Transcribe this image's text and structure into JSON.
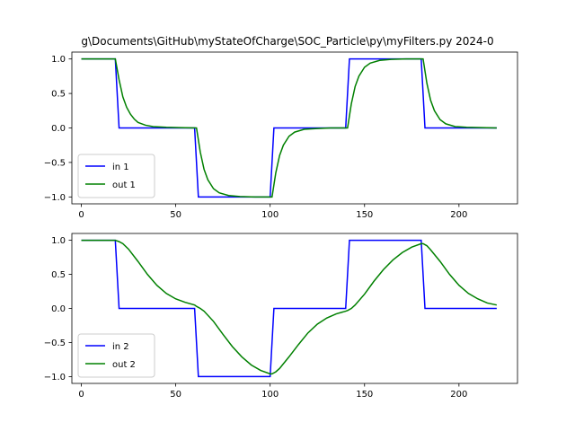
{
  "chart_data": {
    "title": "g\\Documents\\GitHub\\myStateOfCharge\\SOC_Particle\\py\\myFilters.py    2024-0",
    "type": "line",
    "xlim": [
      -5,
      231
    ],
    "ylim": [
      -1.1,
      1.1
    ],
    "xticks": [
      0,
      50,
      100,
      150,
      200
    ],
    "yticks": [
      -1.0,
      -0.5,
      0.0,
      0.5,
      1.0
    ],
    "subplots": [
      {
        "legend_position": "lower-left",
        "series": [
          {
            "name": "in 1",
            "color": "#0000ff",
            "x": [
              0,
              18,
              20,
              60,
              62,
              100,
              102,
              140,
              142,
              180,
              182,
              220
            ],
            "y": [
              1,
              1,
              0,
              0,
              -1,
              -1,
              0,
              0,
              1,
              1,
              0,
              0
            ]
          },
          {
            "name": "out 1",
            "color": "#008000",
            "x": [
              0,
              18,
              20,
              22,
              24,
              26,
              28,
              30,
              34,
              38,
              45,
              52,
              61,
              63,
              65,
              67,
              70,
              73,
              78,
              84,
              92,
              101,
              103,
              105,
              107,
              110,
              113,
              118,
              124,
              132,
              141,
              143,
              145,
              147,
              150,
              153,
              158,
              164,
              172,
              181,
              183,
              185,
              187,
              190,
              193,
              198,
              204,
              212,
              220
            ],
            "y": [
              1,
              1,
              0.7,
              0.45,
              0.3,
              0.2,
              0.13,
              0.08,
              0.04,
              0.02,
              0.01,
              0.005,
              0.0,
              -0.35,
              -0.6,
              -0.75,
              -0.88,
              -0.94,
              -0.98,
              -0.995,
              -1.0,
              -1.0,
              -0.65,
              -0.4,
              -0.25,
              -0.12,
              -0.06,
              -0.02,
              -0.01,
              0.0,
              0.0,
              0.35,
              0.6,
              0.75,
              0.88,
              0.94,
              0.98,
              0.995,
              1.0,
              1.0,
              0.65,
              0.4,
              0.25,
              0.12,
              0.06,
              0.02,
              0.01,
              0.005,
              0.0
            ]
          }
        ]
      },
      {
        "legend_position": "lower-left",
        "series": [
          {
            "name": "in 2",
            "color": "#0000ff",
            "x": [
              0,
              18,
              20,
              60,
              62,
              100,
              102,
              140,
              142,
              180,
              182,
              220
            ],
            "y": [
              1,
              1,
              0,
              0,
              -1,
              -1,
              0,
              0,
              1,
              1,
              0,
              0
            ]
          },
          {
            "name": "out 2",
            "color": "#008000",
            "x": [
              0,
              18,
              20,
              22,
              25,
              30,
              35,
              40,
              45,
              50,
              55,
              60,
              61,
              63,
              65,
              70,
              75,
              80,
              85,
              90,
              95,
              100,
              101,
              103,
              105,
              110,
              115,
              120,
              125,
              130,
              135,
              140,
              141,
              143,
              145,
              150,
              155,
              160,
              165,
              170,
              175,
              180,
              181,
              183,
              185,
              190,
              195,
              200,
              205,
              210,
              215,
              220
            ],
            "y": [
              1,
              1,
              0.98,
              0.95,
              0.87,
              0.69,
              0.5,
              0.34,
              0.22,
              0.14,
              0.09,
              0.05,
              0.03,
              0.0,
              -0.04,
              -0.19,
              -0.38,
              -0.56,
              -0.71,
              -0.83,
              -0.91,
              -0.96,
              -0.96,
              -0.93,
              -0.88,
              -0.71,
              -0.53,
              -0.36,
              -0.23,
              -0.14,
              -0.08,
              -0.04,
              -0.03,
              0.0,
              0.05,
              0.21,
              0.4,
              0.57,
              0.71,
              0.82,
              0.9,
              0.95,
              0.95,
              0.92,
              0.86,
              0.69,
              0.5,
              0.34,
              0.22,
              0.14,
              0.08,
              0.05
            ]
          }
        ]
      }
    ]
  }
}
